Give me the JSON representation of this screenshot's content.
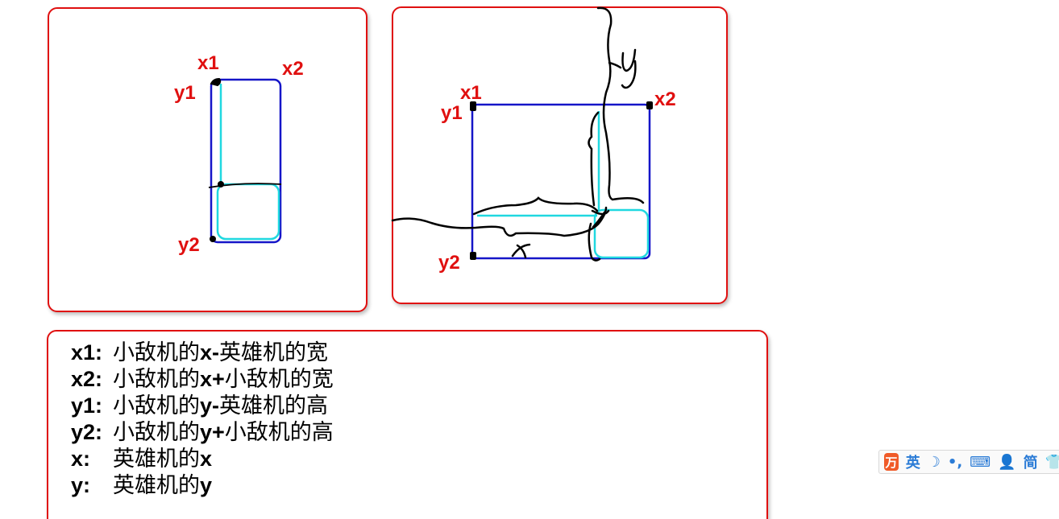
{
  "diagram_left": {
    "labels": {
      "x1": "x1",
      "x2": "x2",
      "y1": "y1",
      "y2": "y2"
    }
  },
  "diagram_right": {
    "labels": {
      "x1": "x1",
      "x2": "x2",
      "y1": "y1",
      "y2": "y2"
    },
    "handwritten": {
      "x": "x",
      "y": "y"
    }
  },
  "legend": [
    {
      "key": "x1:",
      "pre": "小敌机的",
      "mid": "x-",
      "post": "英雄机的宽"
    },
    {
      "key": "x2:",
      "pre": "小敌机的",
      "mid": "x+",
      "post": "小敌机的宽"
    },
    {
      "key": "y1:",
      "pre": "小敌机的",
      "mid": "y-",
      "post": "英雄机的高"
    },
    {
      "key": "y2:",
      "pre": "小敌机的",
      "mid": "y+",
      "post": "小敌机的高"
    },
    {
      "key": "x:",
      "pre": "英雄机的",
      "mid": "x",
      "post": ""
    },
    {
      "key": "y:",
      "pre": "英雄机的",
      "mid": "y",
      "post": ""
    }
  ],
  "ime_toolbar": {
    "logo": "万",
    "lang": "英",
    "moon": "☽",
    "punct": "•,",
    "keyboard": "⌨",
    "user": "👤",
    "simplified": "简",
    "skin": "👕"
  },
  "colors": {
    "panel_border": "#e01010",
    "label": "#e01010",
    "box_outline": "#1515c8",
    "inner_outline": "#20d8e0",
    "ink": "#000000"
  }
}
